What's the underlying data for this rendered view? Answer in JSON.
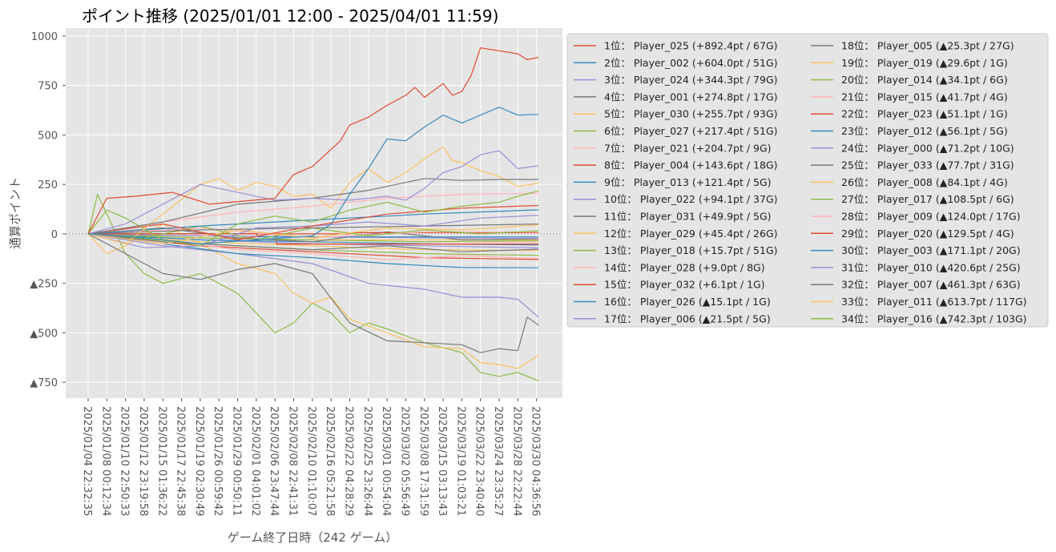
{
  "chart_data": {
    "type": "line",
    "title": "ポイント推移 (2025/01/01 12:00 - 2025/04/01 11:59)",
    "xlabel": "ゲーム終了日時（242 ゲーム）",
    "ylabel": "通算ポイント",
    "x_range": [
      0,
      241
    ],
    "ylim": [
      -830,
      1040
    ],
    "grid": true,
    "zero_line": true,
    "legend_location": "outside-right",
    "y_ticks": [
      {
        "value": 1000,
        "label": "1000"
      },
      {
        "value": 750,
        "label": "750"
      },
      {
        "value": 500,
        "label": "500"
      },
      {
        "value": 250,
        "label": "250"
      },
      {
        "value": 0,
        "label": "0"
      },
      {
        "value": -250,
        "label": "▲250"
      },
      {
        "value": -500,
        "label": "▲500"
      },
      {
        "value": -750,
        "label": "▲750"
      }
    ],
    "x_ticks": [
      {
        "index": 0,
        "label": "2025/01/04 22:32:35"
      },
      {
        "index": 10,
        "label": "2025/01/08 00:12:34"
      },
      {
        "index": 20,
        "label": "2025/01/10 22:50:33"
      },
      {
        "index": 30,
        "label": "2025/01/12 23:19:58"
      },
      {
        "index": 40,
        "label": "2025/01/15 01:36:22"
      },
      {
        "index": 50,
        "label": "2025/01/17 22:45:38"
      },
      {
        "index": 60,
        "label": "2025/01/19 02:30:49"
      },
      {
        "index": 70,
        "label": "2025/01/26 00:59:42"
      },
      {
        "index": 80,
        "label": "2025/01/29 00:50:11"
      },
      {
        "index": 90,
        "label": "2025/02/01 04:01:02"
      },
      {
        "index": 100,
        "label": "2025/02/06 23:47:44"
      },
      {
        "index": 110,
        "label": "2025/02/08 22:41:31"
      },
      {
        "index": 120,
        "label": "2025/02/10 01:10:07"
      },
      {
        "index": 130,
        "label": "2025/02/16 05:21:58"
      },
      {
        "index": 140,
        "label": "2025/02/22 04:28:29"
      },
      {
        "index": 150,
        "label": "2025/02/25 23:26:44"
      },
      {
        "index": 160,
        "label": "2025/03/01 00:54:04"
      },
      {
        "index": 170,
        "label": "2025/03/02 05:56:49"
      },
      {
        "index": 180,
        "label": "2025/03/08 17:31:59"
      },
      {
        "index": 190,
        "label": "2025/03/15 03:13:43"
      },
      {
        "index": 200,
        "label": "2025/03/19 01:03:21"
      },
      {
        "index": 210,
        "label": "2025/03/22 23:40:40"
      },
      {
        "index": 220,
        "label": "2025/03/24 23:35:27"
      },
      {
        "index": 230,
        "label": "2025/03/28 22:22:44"
      },
      {
        "index": 240,
        "label": "2025/03/30 04:36:56"
      }
    ],
    "series": [
      {
        "name": "1位： Player_025 (+892.4pt / 67G)",
        "color": "#E24A33",
        "x": [
          0,
          10,
          25,
          45,
          65,
          100,
          110,
          120,
          135,
          140,
          150,
          160,
          170,
          175,
          180,
          190,
          195,
          200,
          205,
          210,
          230,
          235,
          241
        ],
        "y": [
          0,
          180,
          190,
          210,
          150,
          180,
          300,
          340,
          470,
          550,
          590,
          650,
          700,
          740,
          690,
          760,
          700,
          720,
          800,
          940,
          910,
          880,
          892.4
        ]
      },
      {
        "name": "2位： Player_002 (+604.0pt / 51G)",
        "color": "#348ABD",
        "x": [
          0,
          30,
          60,
          90,
          120,
          130,
          140,
          150,
          160,
          170,
          180,
          190,
          200,
          210,
          220,
          225,
          230,
          241
        ],
        "y": [
          0,
          -20,
          -50,
          -30,
          -10,
          50,
          200,
          330,
          480,
          470,
          540,
          600,
          560,
          600,
          640,
          620,
          600,
          604
        ]
      },
      {
        "name": "3位： Player_024 (+344.3pt / 79G)",
        "color": "#988ED5",
        "x": [
          0,
          20,
          40,
          60,
          80,
          100,
          120,
          140,
          160,
          170,
          180,
          190,
          200,
          210,
          220,
          230,
          241
        ],
        "y": [
          0,
          50,
          150,
          250,
          210,
          170,
          180,
          170,
          190,
          170,
          230,
          310,
          340,
          400,
          420,
          330,
          344.3
        ]
      },
      {
        "name": "4位： Player_001 (+274.8pt / 17G)",
        "color": "#777777",
        "x": [
          0,
          40,
          80,
          120,
          150,
          180,
          200,
          220,
          241
        ],
        "y": [
          0,
          60,
          150,
          180,
          220,
          280,
          270,
          275,
          274.8
        ]
      },
      {
        "name": "5位： Player_030 (+255.7pt / 93G)",
        "color": "#FBC15E",
        "x": [
          0,
          20,
          40,
          60,
          70,
          80,
          90,
          100,
          110,
          120,
          130,
          140,
          150,
          160,
          170,
          180,
          190,
          195,
          200,
          210,
          220,
          230,
          241
        ],
        "y": [
          0,
          -50,
          100,
          250,
          280,
          220,
          260,
          240,
          190,
          200,
          130,
          260,
          330,
          260,
          310,
          380,
          440,
          370,
          360,
          320,
          290,
          240,
          255.7
        ]
      },
      {
        "name": "6位： Player_027 (+217.4pt / 51G)",
        "color": "#8EBA42",
        "x": [
          0,
          10,
          20,
          40,
          60,
          80,
          100,
          120,
          140,
          160,
          180,
          200,
          220,
          230,
          241
        ],
        "y": [
          0,
          120,
          80,
          -30,
          -60,
          50,
          90,
          60,
          120,
          160,
          110,
          140,
          160,
          190,
          217.4
        ]
      },
      {
        "name": "7位： Player_021 (+204.7pt / 9G)",
        "color": "#FFB5B8",
        "x": [
          0,
          40,
          80,
          120,
          160,
          200,
          241
        ],
        "y": [
          0,
          60,
          110,
          140,
          180,
          200,
          204.7
        ]
      },
      {
        "name": "8位： Player_004 (+143.6pt / 18G)",
        "color": "#E24A33",
        "x": [
          0,
          40,
          80,
          120,
          160,
          200,
          241
        ],
        "y": [
          0,
          50,
          -30,
          40,
          100,
          130,
          143.6
        ]
      },
      {
        "name": "9位： Player_013 (+121.4pt / 5G)",
        "color": "#348ABD",
        "x": [
          0,
          60,
          120,
          180,
          241
        ],
        "y": [
          0,
          40,
          70,
          100,
          121.4
        ]
      },
      {
        "name": "10位： Player_022 (+94.1pt / 37G)",
        "color": "#988ED5",
        "x": [
          0,
          30,
          60,
          90,
          120,
          150,
          180,
          210,
          241
        ],
        "y": [
          0,
          -70,
          -60,
          30,
          40,
          60,
          40,
          80,
          94.1
        ]
      },
      {
        "name": "11位： Player_031 (+49.9pt / 5G)",
        "color": "#777777",
        "x": [
          0,
          60,
          120,
          180,
          241
        ],
        "y": [
          0,
          20,
          30,
          40,
          49.9
        ]
      },
      {
        "name": "12位： Player_029 (+45.4pt / 26G)",
        "color": "#FBC15E",
        "x": [
          0,
          40,
          80,
          120,
          160,
          200,
          241
        ],
        "y": [
          0,
          -50,
          20,
          -20,
          30,
          20,
          45.4
        ]
      },
      {
        "name": "13位： Player_018 (+15.7pt / 51G)",
        "color": "#8EBA42",
        "x": [
          0,
          30,
          60,
          90,
          120,
          150,
          180,
          210,
          241
        ],
        "y": [
          0,
          -20,
          40,
          -30,
          30,
          -10,
          20,
          0,
          15.7
        ]
      },
      {
        "name": "14位： Player_028 (+9.0pt / 8G)",
        "color": "#FFB5B8",
        "x": [
          0,
          60,
          120,
          180,
          241
        ],
        "y": [
          0,
          30,
          -20,
          10,
          9
        ]
      },
      {
        "name": "15位： Player_032 (+6.1pt / 1G)",
        "color": "#E24A33",
        "x": [
          0,
          140,
          141,
          241
        ],
        "y": [
          0,
          0,
          6.1,
          6.1
        ]
      },
      {
        "name": "16位： Player_026 (▲15.1pt / 1G)",
        "color": "#348ABD",
        "x": [
          0,
          90,
          91,
          241
        ],
        "y": [
          0,
          0,
          -15.1,
          -15.1
        ]
      },
      {
        "name": "17位： Player_006 (▲21.5pt / 5G)",
        "color": "#988ED5",
        "x": [
          0,
          60,
          120,
          180,
          241
        ],
        "y": [
          0,
          -10,
          -15,
          -20,
          -21.5
        ]
      },
      {
        "name": "18位： Player_005 (▲25.3pt / 27G)",
        "color": "#777777",
        "x": [
          0,
          40,
          80,
          120,
          160,
          200,
          241
        ],
        "y": [
          0,
          30,
          -20,
          -40,
          10,
          -30,
          -25.3
        ]
      },
      {
        "name": "19位： Player_019 (▲29.6pt / 1G)",
        "color": "#FBC15E",
        "x": [
          0,
          120,
          121,
          241
        ],
        "y": [
          0,
          0,
          -29.6,
          -29.6
        ]
      },
      {
        "name": "20位： Player_014 (▲34.1pt / 6G)",
        "color": "#8EBA42",
        "x": [
          0,
          60,
          120,
          180,
          241
        ],
        "y": [
          0,
          -20,
          -30,
          -40,
          -34.1
        ]
      },
      {
        "name": "21位： Player_015 (▲41.7pt / 4G)",
        "color": "#FFB5B8",
        "x": [
          0,
          60,
          120,
          180,
          241
        ],
        "y": [
          0,
          -20,
          -30,
          -40,
          -41.7
        ]
      },
      {
        "name": "22位： Player_023 (▲51.1pt / 1G)",
        "color": "#E24A33",
        "x": [
          0,
          100,
          101,
          241
        ],
        "y": [
          0,
          0,
          -51.1,
          -51.1
        ]
      },
      {
        "name": "23位： Player_012 (▲56.1pt / 5G)",
        "color": "#348ABD",
        "x": [
          0,
          60,
          120,
          180,
          241
        ],
        "y": [
          0,
          -30,
          -40,
          -50,
          -56.1
        ]
      },
      {
        "name": "24位： Player_000 (▲71.2pt / 10G)",
        "color": "#988ED5",
        "x": [
          0,
          60,
          120,
          180,
          241
        ],
        "y": [
          0,
          -30,
          -50,
          -60,
          -71.2
        ]
      },
      {
        "name": "25位： Player_033 (▲77.7pt / 31G)",
        "color": "#777777",
        "x": [
          0,
          40,
          80,
          120,
          160,
          200,
          241
        ],
        "y": [
          0,
          -40,
          -60,
          -80,
          -60,
          -90,
          -77.7
        ]
      },
      {
        "name": "26位： Player_008 (▲84.1pt / 4G)",
        "color": "#FBC15E",
        "x": [
          0,
          60,
          120,
          180,
          241
        ],
        "y": [
          0,
          -40,
          -60,
          -80,
          -84.1
        ]
      },
      {
        "name": "27位： Player_017 (▲108.5pt / 6G)",
        "color": "#8EBA42",
        "x": [
          0,
          60,
          120,
          180,
          241
        ],
        "y": [
          0,
          -50,
          -80,
          -100,
          -108.5
        ]
      },
      {
        "name": "28位： Player_009 (▲124.0pt / 17G)",
        "color": "#FFB5B8",
        "x": [
          0,
          40,
          80,
          120,
          160,
          200,
          241
        ],
        "y": [
          0,
          -30,
          -80,
          -100,
          -130,
          -110,
          -124
        ]
      },
      {
        "name": "29位： Player_020 (▲129.5pt / 4G)",
        "color": "#E24A33",
        "x": [
          0,
          60,
          120,
          180,
          241
        ],
        "y": [
          0,
          -60,
          -90,
          -120,
          -129.5
        ]
      },
      {
        "name": "30位： Player_003 (▲171.1pt / 20G)",
        "color": "#348ABD",
        "x": [
          0,
          40,
          80,
          120,
          160,
          200,
          241
        ],
        "y": [
          0,
          -50,
          -100,
          -120,
          -150,
          -170,
          -171.1
        ]
      },
      {
        "name": "31位： Player_010 (▲420.6pt / 25G)",
        "color": "#988ED5",
        "x": [
          0,
          40,
          80,
          120,
          150,
          180,
          200,
          220,
          230,
          241
        ],
        "y": [
          0,
          -60,
          -100,
          -150,
          -250,
          -280,
          -320,
          -320,
          -330,
          -420.6
        ]
      },
      {
        "name": "32位： Player_007 (▲461.3pt / 63G)",
        "color": "#777777",
        "x": [
          0,
          20,
          40,
          60,
          80,
          100,
          120,
          140,
          160,
          180,
          200,
          210,
          220,
          230,
          235,
          241
        ],
        "y": [
          0,
          -100,
          -200,
          -230,
          -180,
          -150,
          -200,
          -450,
          -540,
          -550,
          -560,
          -600,
          -580,
          -590,
          -420,
          -461.3
        ]
      },
      {
        "name": "33位： Player_011 (▲613.7pt / 117G)",
        "color": "#FBC15E",
        "x": [
          0,
          10,
          20,
          40,
          60,
          80,
          100,
          110,
          120,
          130,
          140,
          160,
          180,
          200,
          210,
          220,
          230,
          241
        ],
        "y": [
          0,
          -100,
          -60,
          50,
          -50,
          -150,
          -200,
          -300,
          -350,
          -320,
          -430,
          -500,
          -570,
          -580,
          -650,
          -660,
          -680,
          -613.7
        ]
      },
      {
        "name": "34位： Player_016 (▲742.3pt / 103G)",
        "color": "#8EBA42",
        "x": [
          0,
          5,
          10,
          20,
          30,
          40,
          60,
          80,
          90,
          100,
          110,
          120,
          130,
          140,
          150,
          160,
          180,
          200,
          210,
          220,
          230,
          241
        ],
        "y": [
          0,
          200,
          100,
          -100,
          -200,
          -250,
          -200,
          -300,
          -400,
          -500,
          -450,
          -350,
          -400,
          -500,
          -450,
          -480,
          -550,
          -600,
          -700,
          -720,
          -700,
          -742.3
        ]
      }
    ]
  }
}
